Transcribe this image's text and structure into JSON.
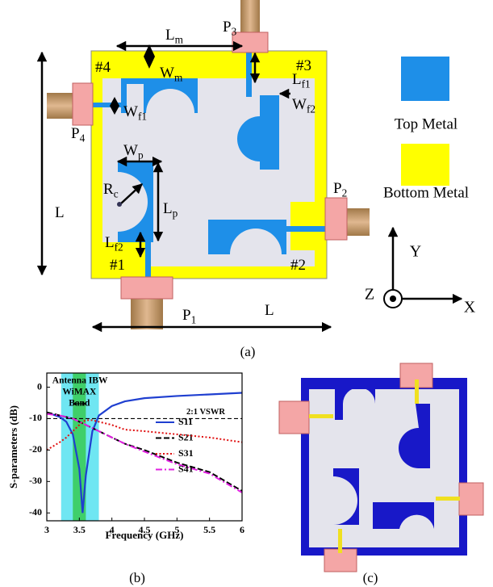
{
  "diagram": {
    "labels": [
      {
        "text": "L",
        "sub": "m"
      },
      {
        "text": "W",
        "sub": "m"
      },
      {
        "text": "L",
        "sub": "f1"
      },
      {
        "text": "W",
        "sub": "f2"
      },
      {
        "text": "W",
        "sub": "f1"
      },
      {
        "text": "W",
        "sub": "p"
      },
      {
        "text": "R",
        "sub": "c"
      },
      {
        "text": "L",
        "sub": "p"
      },
      {
        "text": "L",
        "sub": "f2"
      },
      {
        "text": "L"
      },
      {
        "text": "L"
      },
      {
        "text": "P",
        "sub": "1"
      },
      {
        "text": "P",
        "sub": "2"
      },
      {
        "text": "P",
        "sub": "3"
      },
      {
        "text": "P",
        "sub": "4"
      },
      {
        "text": "#4"
      },
      {
        "text": "#3"
      },
      {
        "text": "#1"
      },
      {
        "text": "#2"
      }
    ],
    "legend": [
      "Top Metal",
      "Bottom Metal"
    ],
    "axes": [
      "Y",
      "Z",
      "X"
    ]
  },
  "chart_data": {
    "type": "line",
    "xlabel": "Frequency (GHz)",
    "ylabel": "S-parameters (dB)",
    "x": [
      3,
      3.2,
      3.3,
      3.4,
      3.5,
      3.55,
      3.6,
      3.7,
      3.8,
      4,
      4.2,
      4.5,
      5,
      5.5,
      6
    ],
    "series": [
      {
        "name": "S11",
        "color": "#1f3fd0",
        "dash": "solid",
        "values": [
          -8,
          -9.5,
          -11,
          -15,
          -26,
          -40,
          -28,
          -14,
          -9,
          -6,
          -4.5,
          -3.5,
          -2.8,
          -2.3,
          -1.8
        ]
      },
      {
        "name": "S21",
        "color": "#000000",
        "dash": "dashed",
        "values": [
          -8,
          -9,
          -9.5,
          -10,
          -11,
          -11.5,
          -12,
          -13,
          -14,
          -16,
          -18,
          -20,
          -24,
          -27,
          -33
        ]
      },
      {
        "name": "S31",
        "color": "#e01010",
        "dash": "dotted",
        "values": [
          -20,
          -17.5,
          -16,
          -14,
          -12,
          -11,
          -10.5,
          -10.5,
          -11,
          -12,
          -13.5,
          -14,
          -15,
          -16,
          -17.5
        ]
      },
      {
        "name": "S41",
        "color": "#e020e0",
        "dash": "dashdot",
        "values": [
          -8.5,
          -9,
          -9.5,
          -10,
          -11,
          -11.5,
          -12,
          -13,
          -14,
          -16,
          -18,
          -20.5,
          -24.5,
          -27.5,
          -33.5
        ]
      }
    ],
    "xlim": [
      3,
      6
    ],
    "ylim": [
      -42.5,
      4.5
    ],
    "xticks": [
      3,
      3.5,
      4,
      4.5,
      5,
      5.5,
      6
    ],
    "yticks": [
      -40,
      -30,
      -20,
      -10,
      0
    ],
    "bands": [
      {
        "label": [
          "Antenna IBW"
        ],
        "xlim": [
          3.22,
          3.8
        ],
        "color": "#6fe6f2"
      },
      {
        "label": [
          "WiMAX",
          "Band"
        ],
        "xlim": [
          3.4,
          3.6
        ],
        "color": "#3fcf6a"
      }
    ],
    "hlines": [
      {
        "value": -10,
        "label": "2:1 VSWR",
        "color": "#000000"
      }
    ]
  },
  "captions": [
    "(a)",
    "(b)",
    "(c)"
  ]
}
